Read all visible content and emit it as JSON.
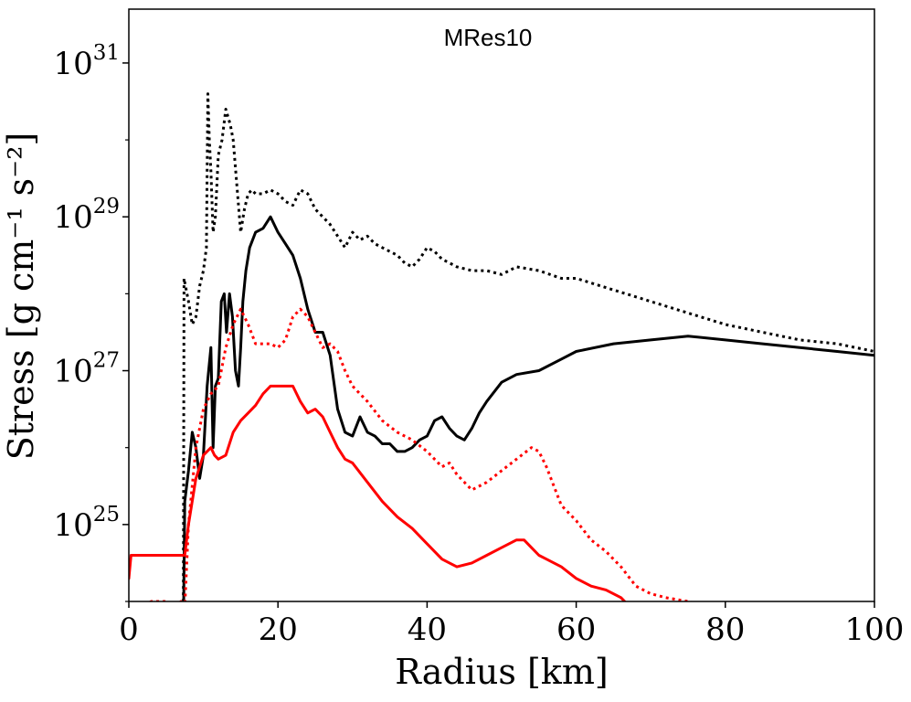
{
  "chart_data": {
    "type": "line",
    "title": "MRes10",
    "xlabel": "Radius [km]",
    "ylabel": "Stress [g cm⁻¹ s⁻²]",
    "xlim": [
      0,
      100
    ],
    "ylim_log10": [
      24.0,
      31.7
    ],
    "y_scale": "log",
    "xticks": [
      0,
      20,
      40,
      60,
      80,
      100
    ],
    "yticks": [
      {
        "exp": 25,
        "base": "10",
        "sup": "25"
      },
      {
        "exp": 27,
        "base": "10",
        "sup": "27"
      },
      {
        "exp": 29,
        "base": "10",
        "sup": "29"
      },
      {
        "exp": 31,
        "base": "10",
        "sup": "31"
      }
    ],
    "series": [
      {
        "name": "black-dotted",
        "color": "#000000",
        "style": "dotted",
        "x": [
          7.3,
          7.4,
          7.6,
          8,
          8.5,
          9,
          9.5,
          10,
          10.4,
          10.6,
          10.8,
          11,
          11.3,
          11.6,
          12,
          12.5,
          13,
          13.3,
          13.6,
          14,
          14.5,
          15,
          15.5,
          16,
          16.5,
          17,
          18,
          19,
          20,
          21,
          22,
          23,
          24,
          25,
          26,
          27,
          28,
          29,
          30,
          31,
          32,
          33,
          34,
          35,
          36,
          37,
          38,
          39,
          40,
          41,
          42,
          43,
          44,
          46,
          48,
          50,
          52,
          55,
          58,
          60,
          65,
          70,
          75,
          80,
          85,
          90,
          95,
          100
        ],
        "log10": [
          23.5,
          28.2,
          28.1,
          27.9,
          27.6,
          27.7,
          28.1,
          28.3,
          28.6,
          30.6,
          30.0,
          29.6,
          28.8,
          29.0,
          29.8,
          30.0,
          30.4,
          30.3,
          30.2,
          30.0,
          29.4,
          28.8,
          29.1,
          29.3,
          29.35,
          29.3,
          29.3,
          29.35,
          29.3,
          29.2,
          29.15,
          29.35,
          29.3,
          29.1,
          29.0,
          28.9,
          28.75,
          28.6,
          28.8,
          28.7,
          28.75,
          28.65,
          28.6,
          28.55,
          28.5,
          28.4,
          28.35,
          28.45,
          28.6,
          28.55,
          28.45,
          28.4,
          28.35,
          28.3,
          28.3,
          28.25,
          28.35,
          28.3,
          28.2,
          28.2,
          28.05,
          27.9,
          27.75,
          27.6,
          27.5,
          27.4,
          27.35,
          27.25
        ]
      },
      {
        "name": "black-solid",
        "color": "#000000",
        "style": "solid",
        "x": [
          7.3,
          7.5,
          8,
          8.5,
          9,
          9.5,
          10,
          10.5,
          11,
          11.3,
          11.6,
          12,
          12.4,
          12.8,
          13.1,
          13.5,
          13.9,
          14.3,
          14.7,
          15,
          15.3,
          15.7,
          16.2,
          17,
          18,
          19,
          20,
          21,
          22,
          23,
          24,
          25,
          26,
          27,
          28,
          29,
          30,
          31,
          32,
          33,
          34,
          35,
          36,
          37,
          38,
          39,
          40,
          41,
          42,
          43,
          44,
          45,
          46,
          47,
          48,
          50,
          52,
          55,
          58,
          60,
          65,
          70,
          75,
          80,
          85,
          90,
          95,
          100
        ],
        "log10": [
          23.5,
          25.3,
          25.7,
          26.2,
          26.0,
          25.6,
          25.9,
          26.8,
          27.3,
          26.0,
          26.8,
          26.9,
          27.9,
          28.0,
          27.5,
          28.0,
          27.7,
          27.0,
          26.8,
          27.3,
          27.9,
          28.3,
          28.6,
          28.8,
          28.85,
          29.0,
          28.8,
          28.65,
          28.5,
          28.2,
          27.8,
          27.5,
          27.5,
          27.2,
          26.5,
          26.2,
          26.15,
          26.4,
          26.2,
          26.15,
          26.05,
          26.05,
          25.95,
          25.95,
          26.0,
          26.1,
          26.15,
          26.35,
          26.4,
          26.25,
          26.15,
          26.1,
          26.25,
          26.45,
          26.6,
          26.85,
          26.95,
          27.0,
          27.15,
          27.25,
          27.35,
          27.4,
          27.45,
          27.4,
          27.35,
          27.3,
          27.25,
          27.2
        ]
      },
      {
        "name": "red-dotted",
        "color": "#ff0000",
        "style": "dotted",
        "x": [
          0.5,
          1,
          2,
          3,
          4,
          5,
          6,
          7,
          7.3,
          8,
          9,
          10,
          11,
          12,
          13,
          14,
          15,
          16,
          17,
          18,
          19,
          20,
          21,
          22,
          23,
          24,
          25,
          26,
          27,
          28,
          29,
          30,
          32,
          34,
          36,
          38,
          40,
          42,
          43,
          44,
          46,
          48,
          50,
          52,
          54,
          55,
          56,
          58,
          60,
          62,
          64,
          66,
          68,
          70,
          72,
          75,
          77
        ],
        "log10": [
          23.9,
          23.9,
          23.95,
          24.0,
          24.0,
          24.0,
          23.95,
          24.0,
          23.5,
          25.0,
          26.0,
          26.5,
          26.7,
          26.8,
          27.3,
          27.6,
          27.8,
          27.6,
          27.35,
          27.35,
          27.35,
          27.3,
          27.4,
          27.7,
          27.8,
          27.7,
          27.5,
          27.3,
          27.35,
          27.25,
          27.0,
          26.8,
          26.6,
          26.35,
          26.2,
          26.1,
          25.95,
          25.75,
          25.8,
          25.65,
          25.45,
          25.55,
          25.7,
          25.85,
          26.0,
          25.95,
          25.75,
          25.25,
          25.05,
          24.8,
          24.65,
          24.45,
          24.2,
          24.1,
          24.05,
          24.0,
          23.95
        ]
      },
      {
        "name": "red-solid",
        "color": "#ff0000",
        "style": "solid",
        "x": [
          0,
          0.3,
          1,
          2,
          3,
          4,
          5,
          6,
          7,
          7.5,
          8,
          9,
          10,
          11,
          11.5,
          12,
          13,
          14,
          15,
          16,
          17,
          18,
          19,
          20,
          21,
          22,
          23,
          24,
          25,
          26,
          27,
          28,
          29,
          30,
          32,
          34,
          36,
          38,
          40,
          42,
          43,
          44,
          46,
          48,
          50,
          52,
          53,
          54,
          55,
          56,
          58,
          60,
          62,
          64,
          66,
          67
        ],
        "log10": [
          24.3,
          24.6,
          24.6,
          24.6,
          24.6,
          24.6,
          24.6,
          24.6,
          24.6,
          24.6,
          25.0,
          25.6,
          25.9,
          26.0,
          25.9,
          25.85,
          25.9,
          26.2,
          26.35,
          26.45,
          26.55,
          26.7,
          26.8,
          26.8,
          26.8,
          26.8,
          26.6,
          26.45,
          26.5,
          26.4,
          26.2,
          26.0,
          25.85,
          25.8,
          25.55,
          25.3,
          25.1,
          24.95,
          24.75,
          24.55,
          24.5,
          24.45,
          24.5,
          24.6,
          24.7,
          24.8,
          24.8,
          24.7,
          24.6,
          24.55,
          24.45,
          24.3,
          24.2,
          24.15,
          24.05,
          23.95
        ]
      }
    ]
  }
}
